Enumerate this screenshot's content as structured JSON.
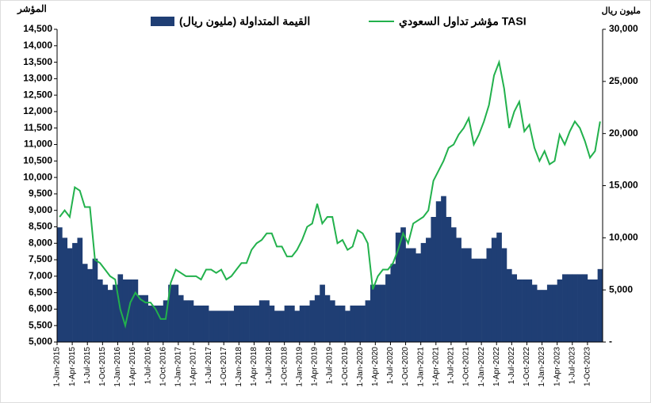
{
  "chart_data": {
    "type": "combo",
    "y_label": "المؤشر",
    "y2_label": "مليون ريال",
    "x": [
      "1-Jan-2015",
      "1-Feb-2015",
      "1-Mar-2015",
      "1-Apr-2015",
      "1-May-2015",
      "1-Jun-2015",
      "1-Jul-2015",
      "1-Aug-2015",
      "1-Sep-2015",
      "1-Oct-2015",
      "1-Nov-2015",
      "1-Dec-2015",
      "1-Jan-2016",
      "1-Feb-2016",
      "1-Mar-2016",
      "1-Apr-2016",
      "1-May-2016",
      "1-Jun-2016",
      "1-Jul-2016",
      "1-Aug-2016",
      "1-Sep-2016",
      "1-Oct-2016",
      "1-Nov-2016",
      "1-Dec-2016",
      "1-Jan-2017",
      "1-Feb-2017",
      "1-Mar-2017",
      "1-Apr-2017",
      "1-May-2017",
      "1-Jun-2017",
      "1-Jul-2017",
      "1-Aug-2017",
      "1-Sep-2017",
      "1-Oct-2017",
      "1-Nov-2017",
      "1-Dec-2017",
      "1-Jan-2018",
      "1-Feb-2018",
      "1-Mar-2018",
      "1-Apr-2018",
      "1-May-2018",
      "1-Jun-2018",
      "1-Jul-2018",
      "1-Aug-2018",
      "1-Sep-2018",
      "1-Oct-2018",
      "1-Nov-2018",
      "1-Dec-2018",
      "1-Jan-2019",
      "1-Feb-2019",
      "1-Mar-2019",
      "1-Apr-2019",
      "1-May-2019",
      "1-Jun-2019",
      "1-Jul-2019",
      "1-Aug-2019",
      "1-Sep-2019",
      "1-Oct-2019",
      "1-Nov-2019",
      "1-Dec-2019",
      "1-Jan-2020",
      "1-Feb-2020",
      "1-Mar-2020",
      "1-Apr-2020",
      "1-May-2020",
      "1-Jun-2020",
      "1-Jul-2020",
      "1-Aug-2020",
      "1-Sep-2020",
      "1-Oct-2020",
      "1-Nov-2020",
      "1-Dec-2020",
      "1-Jan-2021",
      "1-Feb-2021",
      "1-Mar-2021",
      "1-Apr-2021",
      "1-May-2021",
      "1-Jun-2021",
      "1-Jul-2021",
      "1-Aug-2021",
      "1-Sep-2021",
      "1-Oct-2021",
      "1-Nov-2021",
      "1-Dec-2021",
      "1-Jan-2022",
      "1-Feb-2022",
      "1-Mar-2022",
      "1-Apr-2022",
      "1-May-2022",
      "1-Jun-2022",
      "1-Jul-2022",
      "1-Aug-2022",
      "1-Sep-2022",
      "1-Oct-2022",
      "1-Nov-2022",
      "1-Dec-2022",
      "1-Jan-2023",
      "1-Feb-2023",
      "1-Mar-2023",
      "1-Apr-2023",
      "1-May-2023",
      "1-Jun-2023",
      "1-Jul-2023",
      "1-Aug-2023",
      "1-Sep-2023",
      "1-Oct-2023",
      "1-Nov-2023",
      "1-Dec-2023"
    ],
    "xtick_step": 3,
    "series": [
      {
        "name": "القيمة المتداولة (مليون ريال)",
        "type": "bar",
        "axis": "y2",
        "color": "#1f3e74",
        "values": [
          11000,
          10000,
          9000,
          9500,
          10000,
          7500,
          7000,
          8000,
          6000,
          5500,
          5000,
          5500,
          6500,
          6000,
          6000,
          6000,
          4500,
          4500,
          3500,
          3500,
          3500,
          4000,
          5500,
          5500,
          4500,
          4000,
          4000,
          3500,
          3500,
          3500,
          3000,
          3000,
          3000,
          3000,
          3000,
          3500,
          3500,
          3500,
          3500,
          3500,
          4000,
          4000,
          3500,
          3000,
          3000,
          3500,
          3500,
          3000,
          3500,
          3500,
          4000,
          4500,
          5500,
          4500,
          4000,
          3500,
          3500,
          3000,
          3500,
          3500,
          3500,
          4000,
          5500,
          5500,
          5500,
          6500,
          7500,
          10500,
          11000,
          9000,
          9000,
          8500,
          9500,
          10000,
          12000,
          13500,
          14000,
          12000,
          11000,
          10000,
          9000,
          9000,
          8000,
          8000,
          8000,
          9000,
          10000,
          10500,
          9000,
          7000,
          6500,
          6000,
          6000,
          6000,
          5500,
          5000,
          5000,
          5500,
          5500,
          6000,
          6500,
          6500,
          6500,
          6500,
          6500,
          6000,
          6000,
          7000
        ]
      },
      {
        "name": "مؤشر تداول السعودي TASI",
        "type": "line",
        "axis": "y",
        "color": "#22b14c",
        "values": [
          8800,
          9000,
          8800,
          9700,
          9600,
          9100,
          9100,
          7500,
          7400,
          7200,
          7000,
          6900,
          6000,
          5500,
          6200,
          6500,
          6300,
          6200,
          6200,
          6000,
          5700,
          5700,
          6800,
          7200,
          7100,
          7000,
          7000,
          7000,
          6900,
          7200,
          7200,
          7100,
          7200,
          6900,
          7000,
          7200,
          7400,
          7400,
          7800,
          8000,
          8100,
          8300,
          8300,
          7900,
          7900,
          7600,
          7600,
          7800,
          8100,
          8500,
          8600,
          9200,
          8600,
          8800,
          8800,
          8000,
          8100,
          7800,
          7900,
          8400,
          8300,
          8000,
          6600,
          7000,
          7200,
          7200,
          7400,
          7800,
          8300,
          8000,
          8600,
          8700,
          8800,
          9000,
          9900,
          10200,
          10500,
          10900,
          11000,
          11300,
          11500,
          11800,
          11000,
          11300,
          11700,
          12200,
          13100,
          13500,
          12700,
          11500,
          12000,
          12300,
          11400,
          11600,
          10900,
          10500,
          10800,
          10400,
          10500,
          11300,
          11000,
          11400,
          11700,
          11500,
          11100,
          10600,
          10800,
          11700
        ]
      }
    ],
    "ylim": [
      5000,
      14500
    ],
    "yticks": [
      {
        "value": 5000,
        "label": "5,000"
      },
      {
        "value": 5500,
        "label": "5,500"
      },
      {
        "value": 6000,
        "label": "6,000"
      },
      {
        "value": 6500,
        "label": "6,500"
      },
      {
        "value": 7000,
        "label": "7,000"
      },
      {
        "value": 7500,
        "label": "7,500"
      },
      {
        "value": 8000,
        "label": "8,000"
      },
      {
        "value": 8500,
        "label": "8,500"
      },
      {
        "value": 9000,
        "label": "9,000"
      },
      {
        "value": 9500,
        "label": "9,500"
      },
      {
        "value": 10000,
        "label": "10,000"
      },
      {
        "value": 10500,
        "label": "10,500"
      },
      {
        "value": 11000,
        "label": "11,000"
      },
      {
        "value": 11500,
        "label": "11,500"
      },
      {
        "value": 12000,
        "label": "12,000"
      },
      {
        "value": 12500,
        "label": "12,500"
      },
      {
        "value": 13000,
        "label": "13,000"
      },
      {
        "value": 13500,
        "label": "13,500"
      },
      {
        "value": 14000,
        "label": "14,000"
      },
      {
        "value": 14500,
        "label": "14,500"
      }
    ],
    "y2lim": [
      0,
      30000
    ],
    "y2ticks": [
      {
        "value": 0,
        "label": "-"
      },
      {
        "value": 5000,
        "label": "5,000"
      },
      {
        "value": 10000,
        "label": "10,000"
      },
      {
        "value": 15000,
        "label": "15,000"
      },
      {
        "value": 20000,
        "label": "20,000"
      },
      {
        "value": 25000,
        "label": "25,000"
      },
      {
        "value": 30000,
        "label": "30,000"
      }
    ]
  }
}
